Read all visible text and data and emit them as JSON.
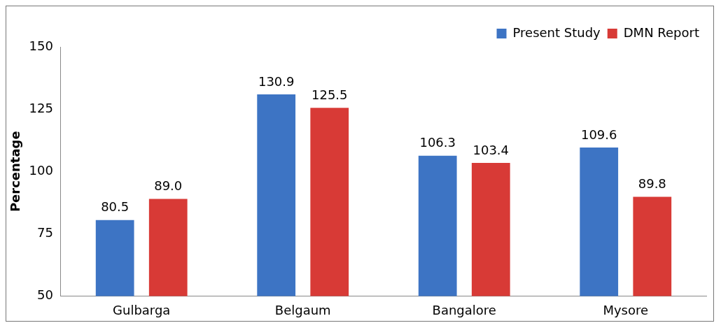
{
  "chart_data": {
    "type": "bar",
    "ylabel": "Percentage",
    "categories": [
      "Gulbarga",
      "Belgaum",
      "Bangalore",
      "Mysore"
    ],
    "series": [
      {
        "name": "Present Study",
        "color": "#3d74c4",
        "values": [
          80.5,
          130.9,
          106.3,
          109.6
        ]
      },
      {
        "name": "DMN Report",
        "color": "#d83a36",
        "values": [
          89.0,
          125.5,
          103.4,
          89.8
        ]
      }
    ],
    "value_labels": [
      [
        "80.5",
        "130.9",
        "106.3",
        "109.6"
      ],
      [
        "89.0",
        "125.5",
        "103.4",
        "89.8"
      ]
    ],
    "ylim": [
      50,
      150
    ],
    "yticks": [
      50,
      75,
      100,
      125,
      150
    ],
    "grid": false,
    "legend": "top right"
  }
}
